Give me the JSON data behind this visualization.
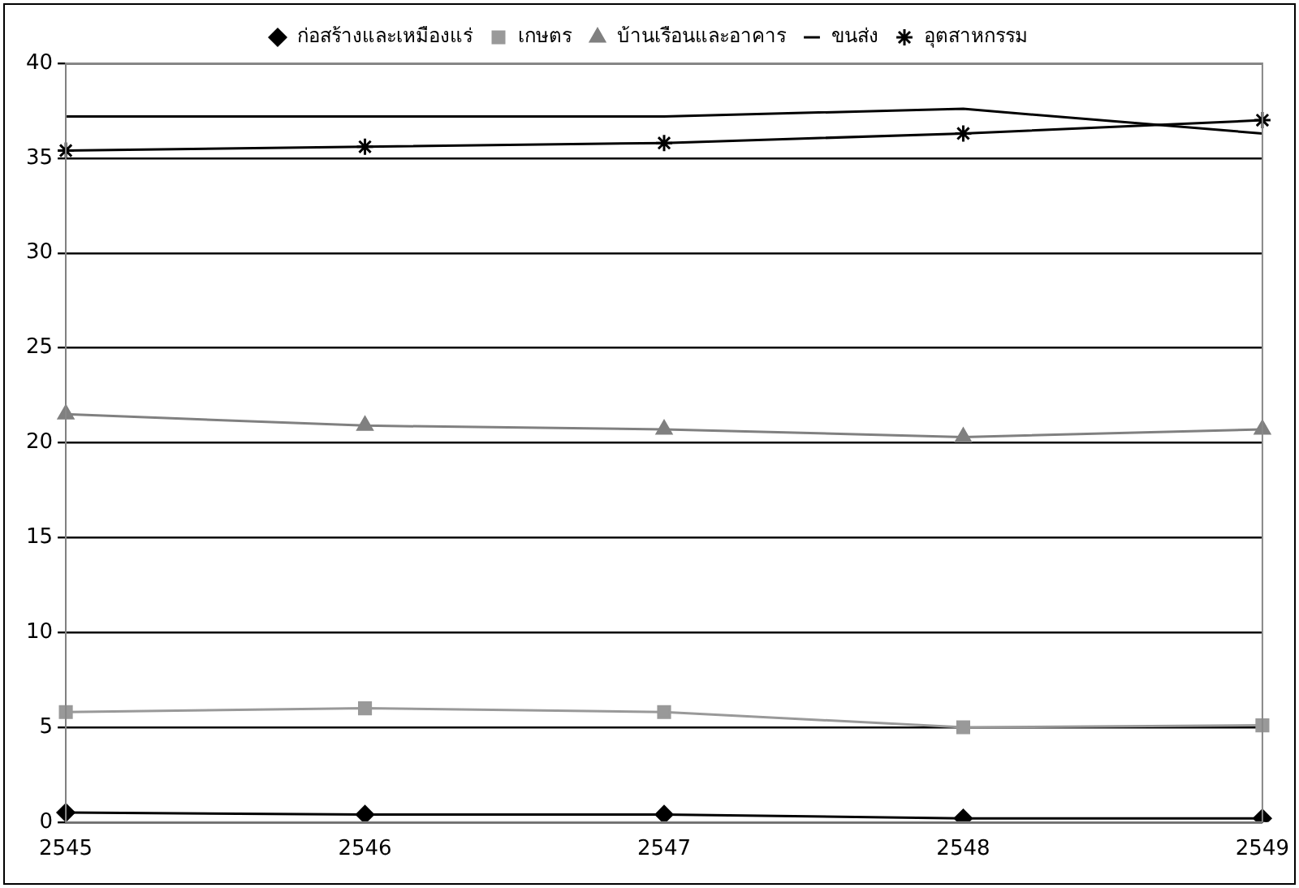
{
  "chart_data": {
    "type": "line",
    "categories": [
      "2545",
      "2546",
      "2547",
      "2548",
      "2549"
    ],
    "series": [
      {
        "name": "ก่อสร้างและเหมืองแร่",
        "color": "#000000",
        "marker": "diamond",
        "values": [
          0.5,
          0.4,
          0.4,
          0.2,
          0.2
        ]
      },
      {
        "name": "เกษตร",
        "color": "#999999",
        "marker": "square",
        "values": [
          5.8,
          6.0,
          5.8,
          5.0,
          5.1
        ]
      },
      {
        "name": "บ้านเรือนและอาคาร",
        "color": "#808080",
        "marker": "triangle",
        "values": [
          21.5,
          20.9,
          20.7,
          20.3,
          20.7
        ]
      },
      {
        "name": "ขนส่ง",
        "color": "#000000",
        "marker": "none",
        "values": [
          37.2,
          37.2,
          37.2,
          37.6,
          36.3
        ]
      },
      {
        "name": "อุตสาหกรรม",
        "color": "#000000",
        "marker": "cross",
        "values": [
          35.4,
          35.6,
          35.8,
          36.3,
          37.0
        ]
      }
    ],
    "ylim": [
      0,
      40
    ],
    "yticks": [
      0,
      5,
      10,
      15,
      20,
      25,
      30,
      35,
      40
    ],
    "grid": "y",
    "legend": "top"
  }
}
